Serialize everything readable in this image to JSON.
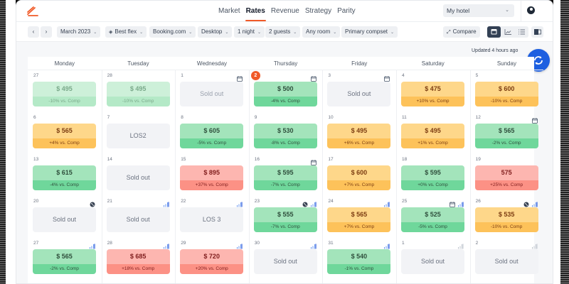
{
  "nav": {
    "items": [
      {
        "label": "Market",
        "active": false
      },
      {
        "label": "Rates",
        "active": true
      },
      {
        "label": "Revenue",
        "active": false
      },
      {
        "label": "Strategy",
        "active": false
      },
      {
        "label": "Parity",
        "active": false
      }
    ],
    "hotel_select": "My hotel"
  },
  "filters": {
    "prev": "‹",
    "next": "›",
    "month": "March 2023",
    "rate": "Best flex",
    "channel": "Booking.com",
    "device": "Desktop",
    "los": "1 night",
    "guests": "2 guests",
    "room": "Any room",
    "compset": "Primary compset",
    "compare": "Compare"
  },
  "status": {
    "updated": "Updated 4 hours ago"
  },
  "colors": {
    "accent": "#f05a28",
    "primary": "#1d5fe0",
    "green": "#6fd79b",
    "orange": "#fdc25a",
    "red": "#fc9185",
    "soldout": "#f2f3f6"
  },
  "calendar": {
    "weekdays": [
      "Monday",
      "Tuesday",
      "Wednesday",
      "Thursday",
      "Friday",
      "Saturday",
      "Sunday"
    ],
    "weeks": [
      [
        {
          "day": "27",
          "type": "lgreen",
          "price": "$ 495",
          "diff": "-10% vs. Comp"
        },
        {
          "day": "28",
          "type": "lgreen",
          "price": "$ 495",
          "diff": "-10% vs. Comp"
        },
        {
          "day": "1",
          "type": "gray light",
          "label": "Sold out",
          "icons": [
            "calendar"
          ]
        },
        {
          "day": "",
          "badge": "2",
          "type": "green",
          "price": "$ 500",
          "diff": "-4% vs. Comp",
          "icons": [
            "calendar"
          ]
        },
        {
          "day": "3",
          "type": "gray",
          "label": "Sold out",
          "icons": [
            "calendar"
          ]
        },
        {
          "day": "4",
          "type": "orange",
          "price": "$ 475",
          "diff": "+10% vs. Comp"
        },
        {
          "day": "5",
          "type": "orange",
          "price": "$ 600",
          "diff": "-10% vs. Comp"
        }
      ],
      [
        {
          "day": "6",
          "type": "orange",
          "price": "$ 565",
          "diff": "+4% vs. Comp"
        },
        {
          "day": "7",
          "type": "gray",
          "label": "LOS2"
        },
        {
          "day": "8",
          "type": "green",
          "price": "$ 605",
          "diff": "-5% vs. Comp"
        },
        {
          "day": "9",
          "type": "green",
          "price": "$ 530",
          "diff": "-8% vs. Comp"
        },
        {
          "day": "10",
          "type": "orange",
          "price": "$ 495",
          "diff": "+6% vs. Comp"
        },
        {
          "day": "11",
          "type": "orange",
          "price": "$ 495",
          "diff": "+1% vs. Comp"
        },
        {
          "day": "12",
          "type": "green",
          "price": "$ 565",
          "diff": "-2% vs. Comp",
          "icons": [
            "calendar"
          ]
        }
      ],
      [
        {
          "day": "13",
          "type": "green",
          "price": "$ 615",
          "diff": "-4% vs. Comp"
        },
        {
          "day": "14",
          "type": "gray",
          "label": "Sold out"
        },
        {
          "day": "15",
          "type": "red",
          "price": "$ 895",
          "diff": "+37% vs. Comp"
        },
        {
          "day": "16",
          "type": "green",
          "price": "$ 595",
          "diff": "-7% vs. Comp",
          "icons": [
            "calendar"
          ]
        },
        {
          "day": "17",
          "type": "orange",
          "price": "$ 600",
          "diff": "+7% vs. Comp"
        },
        {
          "day": "18",
          "type": "green",
          "price": "$ 595",
          "diff": "+0% vs. Comp"
        },
        {
          "day": "19",
          "type": "red",
          "price": "575",
          "diff": "+25% vs. Comp"
        }
      ],
      [
        {
          "day": "20",
          "type": "gray",
          "label": "Sold out",
          "icons": [
            "globe"
          ]
        },
        {
          "day": "21",
          "type": "gray",
          "label": "Sold out",
          "icons": [
            "chart"
          ]
        },
        {
          "day": "22",
          "type": "gray",
          "label": "LOS 3",
          "icons": [
            "chart"
          ]
        },
        {
          "day": "23",
          "type": "green",
          "price": "$ 555",
          "diff": "-7% vs. Comp",
          "icons": [
            "globe",
            "chart"
          ]
        },
        {
          "day": "24",
          "type": "orange",
          "price": "$ 565",
          "diff": "+7% vs. Comp",
          "icons": [
            "chart"
          ]
        },
        {
          "day": "25",
          "type": "green",
          "price": "$ 525",
          "diff": "-5% vs. Comp",
          "icons": [
            "calendar",
            "chart"
          ]
        },
        {
          "day": "26",
          "type": "orange",
          "price": "$ 535",
          "diff": "-10% vs. Comp",
          "icons": [
            "globe",
            "chart"
          ]
        }
      ],
      [
        {
          "day": "27",
          "type": "green",
          "price": "$ 565",
          "diff": "-2% vs. Comp",
          "icons": [
            "chart"
          ]
        },
        {
          "day": "28",
          "type": "red",
          "price": "$ 685",
          "diff": "+18% vs. Comp",
          "icons": [
            "chart"
          ]
        },
        {
          "day": "29",
          "type": "red",
          "price": "$ 720",
          "diff": "+20% vs. Comp",
          "icons": [
            "chart"
          ]
        },
        {
          "day": "30",
          "type": "gray",
          "label": "Sold out",
          "icons": [
            "chart"
          ]
        },
        {
          "day": "31",
          "type": "green",
          "price": "$ 540",
          "diff": "-1% vs. Comp",
          "icons": [
            "chart"
          ]
        },
        {
          "day": "1",
          "type": "gray",
          "label": "Sold out",
          "icons": [
            "chart-light"
          ]
        },
        {
          "day": "2",
          "type": "gray",
          "label": "Sold out",
          "icons": [
            "chart-light"
          ]
        }
      ]
    ]
  }
}
